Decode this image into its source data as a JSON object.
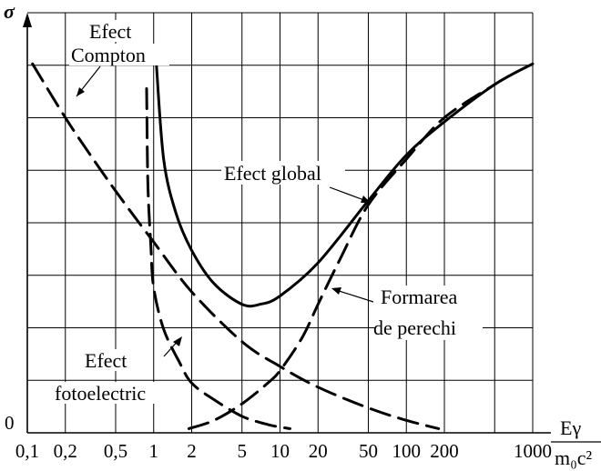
{
  "chart_data": {
    "type": "line",
    "ylabel": "σ",
    "xlabel": {
      "numerator": "Eγ",
      "denominator": "m₀c²"
    },
    "y_zero_label": "0",
    "x_ticks": [
      "0,1",
      "0,2",
      "0,5",
      "1",
      "2",
      "5",
      "10",
      "20",
      "50",
      "100",
      "200",
      "1000"
    ],
    "x_tick_values": [
      0.1,
      0.2,
      0.5,
      1,
      2,
      5,
      10,
      20,
      50,
      100,
      200,
      1000
    ],
    "grid": true,
    "series": [
      {
        "name": "Efect Compton",
        "style": "dashed",
        "x": [
          0.11,
          0.2,
          0.35,
          0.6,
          1,
          2,
          5,
          10,
          20,
          50,
          100,
          180
        ],
        "y": [
          0.89,
          0.76,
          0.65,
          0.55,
          0.46,
          0.34,
          0.22,
          0.16,
          0.11,
          0.06,
          0.03,
          0.01
        ]
      },
      {
        "name": "Efect fotoelectric",
        "style": "dashed",
        "x": [
          0.88,
          0.9,
          0.95,
          1,
          1.2,
          1.6,
          2,
          3,
          5,
          8,
          12
        ],
        "y": [
          0.83,
          0.6,
          0.45,
          0.35,
          0.25,
          0.17,
          0.12,
          0.08,
          0.04,
          0.02,
          0.01
        ]
      },
      {
        "name": "Formarea de perechi",
        "style": "dashed",
        "x": [
          1.9,
          3,
          5,
          8,
          10,
          15,
          20,
          30,
          50,
          100,
          200,
          500
        ],
        "y": [
          0.01,
          0.03,
          0.07,
          0.12,
          0.15,
          0.23,
          0.31,
          0.42,
          0.55,
          0.66,
          0.76,
          0.84
        ]
      },
      {
        "name": "Efect global",
        "style": "solid",
        "x": [
          1.05,
          1.2,
          1.5,
          2,
          3,
          5,
          7,
          10,
          20,
          50,
          100,
          200,
          500,
          1000
        ],
        "y": [
          0.89,
          0.66,
          0.53,
          0.44,
          0.36,
          0.31,
          0.31,
          0.33,
          0.41,
          0.56,
          0.67,
          0.75,
          0.84,
          0.89
        ]
      }
    ],
    "annotations": [
      {
        "lines": [
          "Efect",
          "Compton"
        ]
      },
      {
        "lines": [
          "Efect global"
        ]
      },
      {
        "lines": [
          "Formarea",
          "de perechi"
        ]
      },
      {
        "lines": [
          "Efect",
          "fotoelectric"
        ]
      }
    ]
  }
}
